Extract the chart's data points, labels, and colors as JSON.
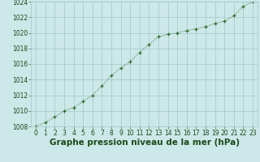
{
  "x": [
    0,
    1,
    2,
    3,
    4,
    5,
    6,
    7,
    8,
    9,
    10,
    11,
    12,
    13,
    14,
    15,
    16,
    17,
    18,
    19,
    20,
    21,
    22,
    23
  ],
  "y": [
    1008.0,
    1008.5,
    1009.2,
    1010.0,
    1010.4,
    1011.2,
    1012.0,
    1013.2,
    1014.5,
    1015.5,
    1016.3,
    1017.5,
    1018.5,
    1019.5,
    1019.8,
    1020.0,
    1020.3,
    1020.5,
    1020.8,
    1021.2,
    1021.5,
    1022.2,
    1023.4,
    1024.0
  ],
  "ylim": [
    1008,
    1024
  ],
  "xlim": [
    -0.5,
    23.5
  ],
  "yticks": [
    1008,
    1010,
    1012,
    1014,
    1016,
    1018,
    1020,
    1022,
    1024
  ],
  "xticks": [
    0,
    1,
    2,
    3,
    4,
    5,
    6,
    7,
    8,
    9,
    10,
    11,
    12,
    13,
    14,
    15,
    16,
    17,
    18,
    19,
    20,
    21,
    22,
    23
  ],
  "line_color": "#2d6a2d",
  "bg_color": "#cce8e8",
  "grid_color": "#a0c8c8",
  "label_color": "#1a4a1a",
  "title": "Graphe pression niveau de la mer (hPa)",
  "title_fontsize": 7.5,
  "tick_fontsize": 5.5
}
